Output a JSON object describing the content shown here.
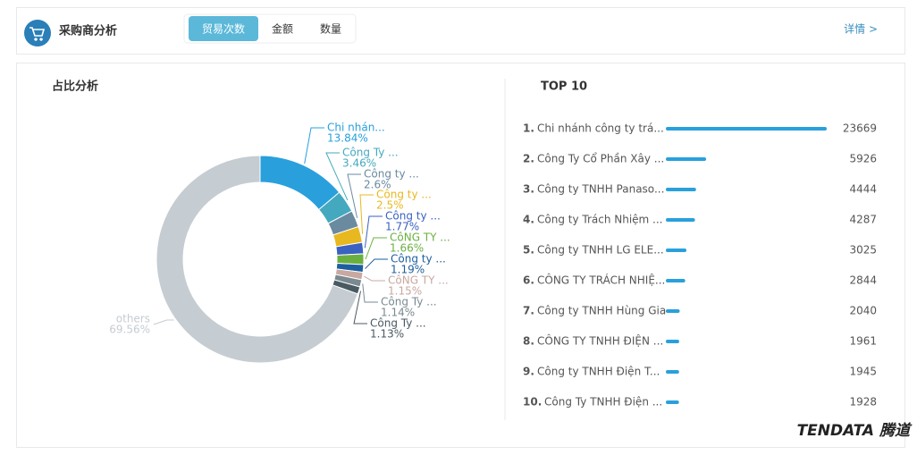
{
  "header": {
    "title": "采购商分析",
    "tabs": [
      "贸易次数",
      "金额",
      "数量"
    ],
    "link": "详情 >"
  },
  "watermark": "TENDATA 腾道",
  "chart_data": [
    {
      "type": "pie",
      "title": "占比分析",
      "categories": [
        "Chi nhán...",
        "Công Ty ...",
        "Công ty ...",
        "Công ty ...",
        "Công ty ...",
        "CôNG TY ...",
        "Công ty ...",
        "CôNG TY ...",
        "Công Ty ...",
        "Công Ty ...",
        "others"
      ],
      "values": [
        13.84,
        3.46,
        2.6,
        2.5,
        1.77,
        1.66,
        1.19,
        1.15,
        1.14,
        1.13,
        69.56
      ],
      "value_labels": [
        "13.84%",
        "3.46%",
        "2.6%",
        "2.5%",
        "1.77%",
        "1.66%",
        "1.19%",
        "1.15%",
        "1.14%",
        "1.13%",
        "69.56%"
      ],
      "colors": [
        "#29a0dc",
        "#44a9be",
        "#6a8aa0",
        "#e8b820",
        "#3a62c0",
        "#6ab040",
        "#1d5e9e",
        "#c8a8a0",
        "#7a8a90",
        "#4a5a62",
        "#c5ccd2"
      ]
    },
    {
      "type": "bar",
      "title": "TOP 10",
      "ranks": [
        "1.",
        "2.",
        "3.",
        "4.",
        "5.",
        "6.",
        "7.",
        "8.",
        "9.",
        "10."
      ],
      "categories": [
        "Chi nhánh công ty trá...",
        "Công Ty Cổ Phần Xây ...",
        "Công ty TNHH Panaso...",
        "Công ty Trách Nhiệm ...",
        "Công ty TNHH LG ELE...",
        "CÔNG TY TRÁCH NHIỆ...",
        "Công ty TNHH Hùng Gia",
        "CÔNG TY TNHH ĐIỆN ...",
        "Công ty TNHH Điện T...",
        "Công Ty TNHH Điện ..."
      ],
      "values": [
        23669,
        5926,
        4444,
        4287,
        3025,
        2844,
        2040,
        1961,
        1945,
        1928
      ],
      "xlim": [
        0,
        23669
      ],
      "color": "#29a0dc"
    }
  ]
}
